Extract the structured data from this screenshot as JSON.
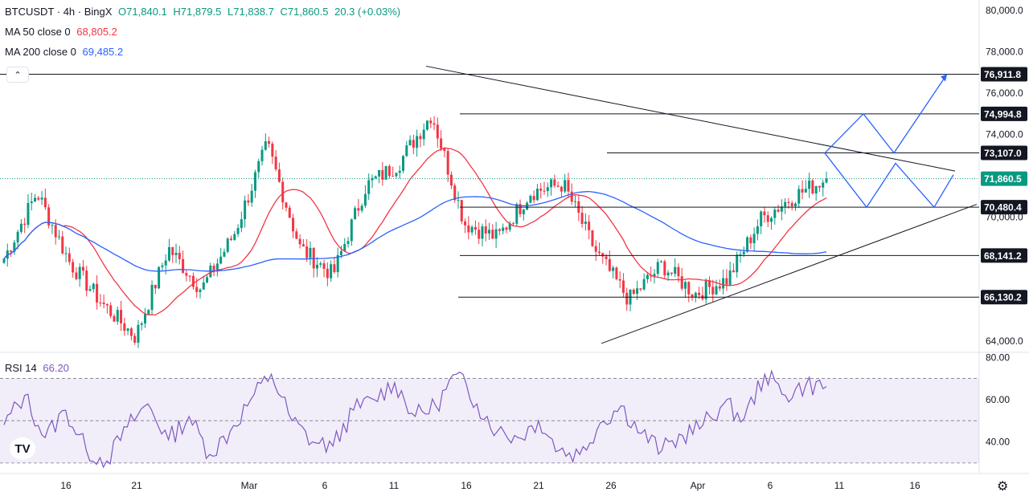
{
  "header": {
    "symbol": "BTCUSDT · 4h · BingX",
    "open": "O71,840.1",
    "high": "H71,879.5",
    "low": "L71,838.7",
    "close": "C71,860.5",
    "change": "20.3 (+0.03%)",
    "ma50_label": "MA 50 close 0",
    "ma50_value": "68,805.2",
    "ma200_label": "MA 200 close 0",
    "ma200_value": "69,485.2",
    "rsi_label": "RSI 14",
    "rsi_value": "66.20",
    "collapse_icon": "chevron-up-icon",
    "logo": "TV",
    "settings_icon": "gear-icon"
  },
  "colors": {
    "up": "#089981",
    "down": "#f23645",
    "ma50": "#f23645",
    "ma200": "#2962ff",
    "rsi": "#7e57c2",
    "projection": "#2962ff",
    "current_price_tag": "#089981"
  },
  "chart_data": {
    "type": "candlestick",
    "symbol": "BTCUSDT",
    "timeframe": "4h",
    "exchange": "BingX",
    "ylim": [
      63500,
      80500
    ],
    "price_ticks": [
      {
        "value": 80000,
        "label": "80,000.0"
      },
      {
        "value": 78000,
        "label": "78,000.0"
      },
      {
        "value": 76000,
        "label": "76,000.0"
      },
      {
        "value": 74000,
        "label": "74,000.0"
      },
      {
        "value": 70000,
        "label": "70,000.0"
      },
      {
        "value": 64000,
        "label": "64,000.0"
      }
    ],
    "levels": [
      {
        "value": 76911.8,
        "label": "76,911.8"
      },
      {
        "value": 74994.8,
        "label": "74,994.8"
      },
      {
        "value": 73107.0,
        "label": "73,107.0"
      },
      {
        "value": 70480.4,
        "label": "70,480.4"
      },
      {
        "value": 68141.2,
        "label": "68,141.2"
      },
      {
        "value": 66130.2,
        "label": "66,130.2"
      }
    ],
    "current_price": {
      "value": 71860.5,
      "label": "71,860.5"
    },
    "x_ticks": [
      "16",
      "21",
      "Mar",
      "6",
      "11",
      "16",
      "21",
      "26",
      "Apr",
      "6",
      "11",
      "16"
    ],
    "key_closes": [
      68000,
      71200,
      67800,
      65800,
      64200,
      68500,
      66500,
      69200,
      73500,
      68500,
      67200,
      71500,
      72600,
      75000,
      69700,
      69000,
      71200,
      71600,
      68300,
      66000,
      67700,
      66300,
      67000,
      69900,
      71000,
      71860.5
    ],
    "rsi": {
      "ylim": [
        25,
        82
      ],
      "ticks": [
        {
          "value": 80,
          "label": "80.00"
        },
        {
          "value": 60,
          "label": "60.00"
        },
        {
          "value": 40,
          "label": "40.00"
        }
      ],
      "bands": [
        30,
        50,
        70
      ],
      "values": [
        48,
        62,
        42,
        55,
        36,
        31,
        47,
        58,
        41,
        52,
        34,
        45,
        60,
        72,
        50,
        40,
        38,
        55,
        60,
        68,
        52,
        57,
        72,
        58,
        45,
        42,
        50,
        36,
        34,
        49,
        57,
        44,
        36,
        43,
        48,
        58,
        51,
        72,
        62,
        67,
        66.2
      ]
    }
  }
}
